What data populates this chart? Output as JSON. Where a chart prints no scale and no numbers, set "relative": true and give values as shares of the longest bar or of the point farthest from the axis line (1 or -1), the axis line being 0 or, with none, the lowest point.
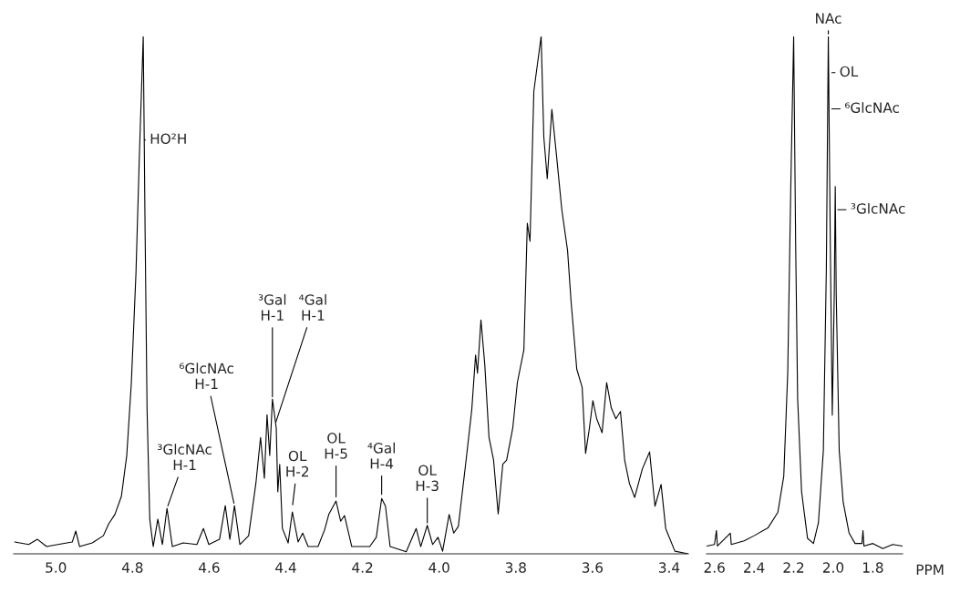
{
  "chart_data": [
    {
      "type": "line",
      "relative": true,
      "tick_labels": "x",
      "xlim": [
        5.11,
        3.35
      ],
      "xticks": [
        {
          "value": 5.0,
          "label": "5.0"
        },
        4.8,
        4.6,
        4.4,
        4.2,
        {
          "value": 4.0,
          "label": "4.0"
        },
        3.8,
        3.6,
        3.4
      ],
      "x": [
        5.107,
        5.071,
        5.048,
        5.024,
        4.988,
        4.957,
        4.948,
        4.938,
        4.905,
        4.876,
        4.862,
        4.846,
        4.829,
        4.815,
        4.803,
        4.791,
        4.782,
        4.772,
        4.767,
        4.762,
        4.755,
        4.746,
        4.734,
        4.722,
        4.71,
        4.696,
        4.668,
        4.632,
        4.615,
        4.601,
        4.573,
        4.558,
        4.546,
        4.534,
        4.52,
        4.497,
        4.478,
        4.466,
        4.456,
        4.449,
        4.442,
        4.435,
        4.425,
        4.421,
        4.416,
        4.409,
        4.394,
        4.383,
        4.368,
        4.356,
        4.342,
        4.316,
        4.299,
        4.288,
        4.269,
        4.257,
        4.247,
        4.228,
        4.181,
        4.164,
        4.15,
        4.14,
        4.128,
        4.086,
        4.06,
        4.048,
        4.031,
        4.017,
        4.003,
        3.991,
        3.974,
        3.962,
        3.95,
        3.931,
        3.915,
        3.905,
        3.9,
        3.891,
        3.881,
        3.87,
        3.858,
        3.846,
        3.834,
        3.824,
        3.808,
        3.796,
        3.779,
        3.77,
        3.763,
        3.753,
        3.734,
        3.727,
        3.718,
        3.706,
        3.694,
        3.68,
        3.665,
        3.656,
        3.641,
        3.627,
        3.618,
        3.608,
        3.599,
        3.589,
        3.575,
        3.563,
        3.551,
        3.539,
        3.527,
        3.516,
        3.504,
        3.49,
        3.47,
        3.451,
        3.437,
        3.421,
        3.409,
        3.385,
        3.35
      ],
      "series": [
        {
          "color": "#000000",
          "values": [
            0.023,
            0.018,
            0.028,
            0.014,
            0.019,
            0.023,
            0.044,
            0.014,
            0.021,
            0.035,
            0.058,
            0.076,
            0.111,
            0.19,
            0.331,
            0.542,
            0.771,
            1.0,
            0.613,
            0.278,
            0.067,
            0.014,
            0.067,
            0.018,
            0.088,
            0.014,
            0.021,
            0.018,
            0.049,
            0.018,
            0.028,
            0.093,
            0.028,
            0.093,
            0.018,
            0.035,
            0.137,
            0.225,
            0.146,
            0.269,
            0.19,
            0.299,
            0.243,
            0.12,
            0.173,
            0.049,
            0.021,
            0.081,
            0.023,
            0.04,
            0.014,
            0.014,
            0.046,
            0.076,
            0.102,
            0.063,
            0.074,
            0.014,
            0.014,
            0.032,
            0.107,
            0.092,
            0.014,
            0.004,
            0.049,
            0.014,
            0.055,
            0.018,
            0.032,
            0.005,
            0.076,
            0.04,
            0.053,
            0.173,
            0.278,
            0.384,
            0.349,
            0.452,
            0.366,
            0.225,
            0.181,
            0.077,
            0.173,
            0.181,
            0.243,
            0.331,
            0.394,
            0.639,
            0.604,
            0.894,
            1.0,
            0.806,
            0.725,
            0.859,
            0.771,
            0.665,
            0.586,
            0.489,
            0.357,
            0.322,
            0.194,
            0.243,
            0.296,
            0.261,
            0.234,
            0.331,
            0.282,
            0.261,
            0.275,
            0.181,
            0.137,
            0.109,
            0.164,
            0.197,
            0.092,
            0.134,
            0.049,
            0.005,
            0.0
          ]
        }
      ],
      "annotations": [
        {
          "text": "HO²H",
          "x": 4.775,
          "y": 0.8
        },
        {
          "text": "³GlcNAc\nH-1",
          "x": 4.71,
          "y": 0.088
        },
        {
          "text": "⁶GlcNAc\nH-1",
          "x": 4.534,
          "y": 0.093
        },
        {
          "text": "³Gal\nH-1",
          "x": 4.435,
          "y": 0.299
        },
        {
          "text": "⁴Gal\nH-1",
          "x": 4.428,
          "y": 0.25
        },
        {
          "text": "OL\nH-2",
          "x": 4.383,
          "y": 0.09
        },
        {
          "text": "OL\nH-5",
          "x": 4.269,
          "y": 0.105
        },
        {
          "text": "⁴Gal\nH-4",
          "x": 4.15,
          "y": 0.11
        },
        {
          "text": "OL\nH-3",
          "x": 4.031,
          "y": 0.055
        }
      ]
    },
    {
      "type": "line",
      "relative": true,
      "tick_labels": "x",
      "xlabel": "PPM",
      "xlim": [
        2.64,
        1.65
      ],
      "xticks": [
        2.6,
        2.4,
        2.2,
        {
          "value": 2.0,
          "label": "2.0"
        },
        1.8
      ],
      "x": [
        2.64,
        2.6,
        2.59,
        2.585,
        2.52,
        2.515,
        2.45,
        2.4,
        2.33,
        2.28,
        2.25,
        2.23,
        2.215,
        2.2,
        2.19,
        2.18,
        2.16,
        2.13,
        2.1,
        2.075,
        2.05,
        2.035,
        2.025,
        2.015,
        2.005,
        1.995,
        1.99,
        1.985,
        1.97,
        1.95,
        1.92,
        1.89,
        1.855,
        1.85,
        1.845,
        1.8,
        1.75,
        1.7,
        1.65
      ],
      "series": [
        {
          "color": "#000000",
          "values": [
            0.015,
            0.018,
            0.045,
            0.015,
            0.04,
            0.018,
            0.025,
            0.035,
            0.05,
            0.08,
            0.15,
            0.35,
            0.7,
            1.0,
            0.6,
            0.3,
            0.12,
            0.03,
            0.02,
            0.06,
            0.2,
            0.55,
            1.0,
            0.6,
            0.268,
            0.5,
            0.71,
            0.5,
            0.2,
            0.1,
            0.04,
            0.02,
            0.02,
            0.045,
            0.015,
            0.02,
            0.01,
            0.018,
            0.015
          ]
        }
      ],
      "annotations": [
        {
          "text": "NAc",
          "x": 2.025,
          "y": 1.0
        },
        {
          "text": "OL",
          "x": 2.02,
          "y": 0.93
        },
        {
          "text": "⁶GlcNAc",
          "x": 2.02,
          "y": 0.86
        },
        {
          "text": "³GlcNAc",
          "x": 1.99,
          "y": 0.665
        }
      ]
    }
  ]
}
